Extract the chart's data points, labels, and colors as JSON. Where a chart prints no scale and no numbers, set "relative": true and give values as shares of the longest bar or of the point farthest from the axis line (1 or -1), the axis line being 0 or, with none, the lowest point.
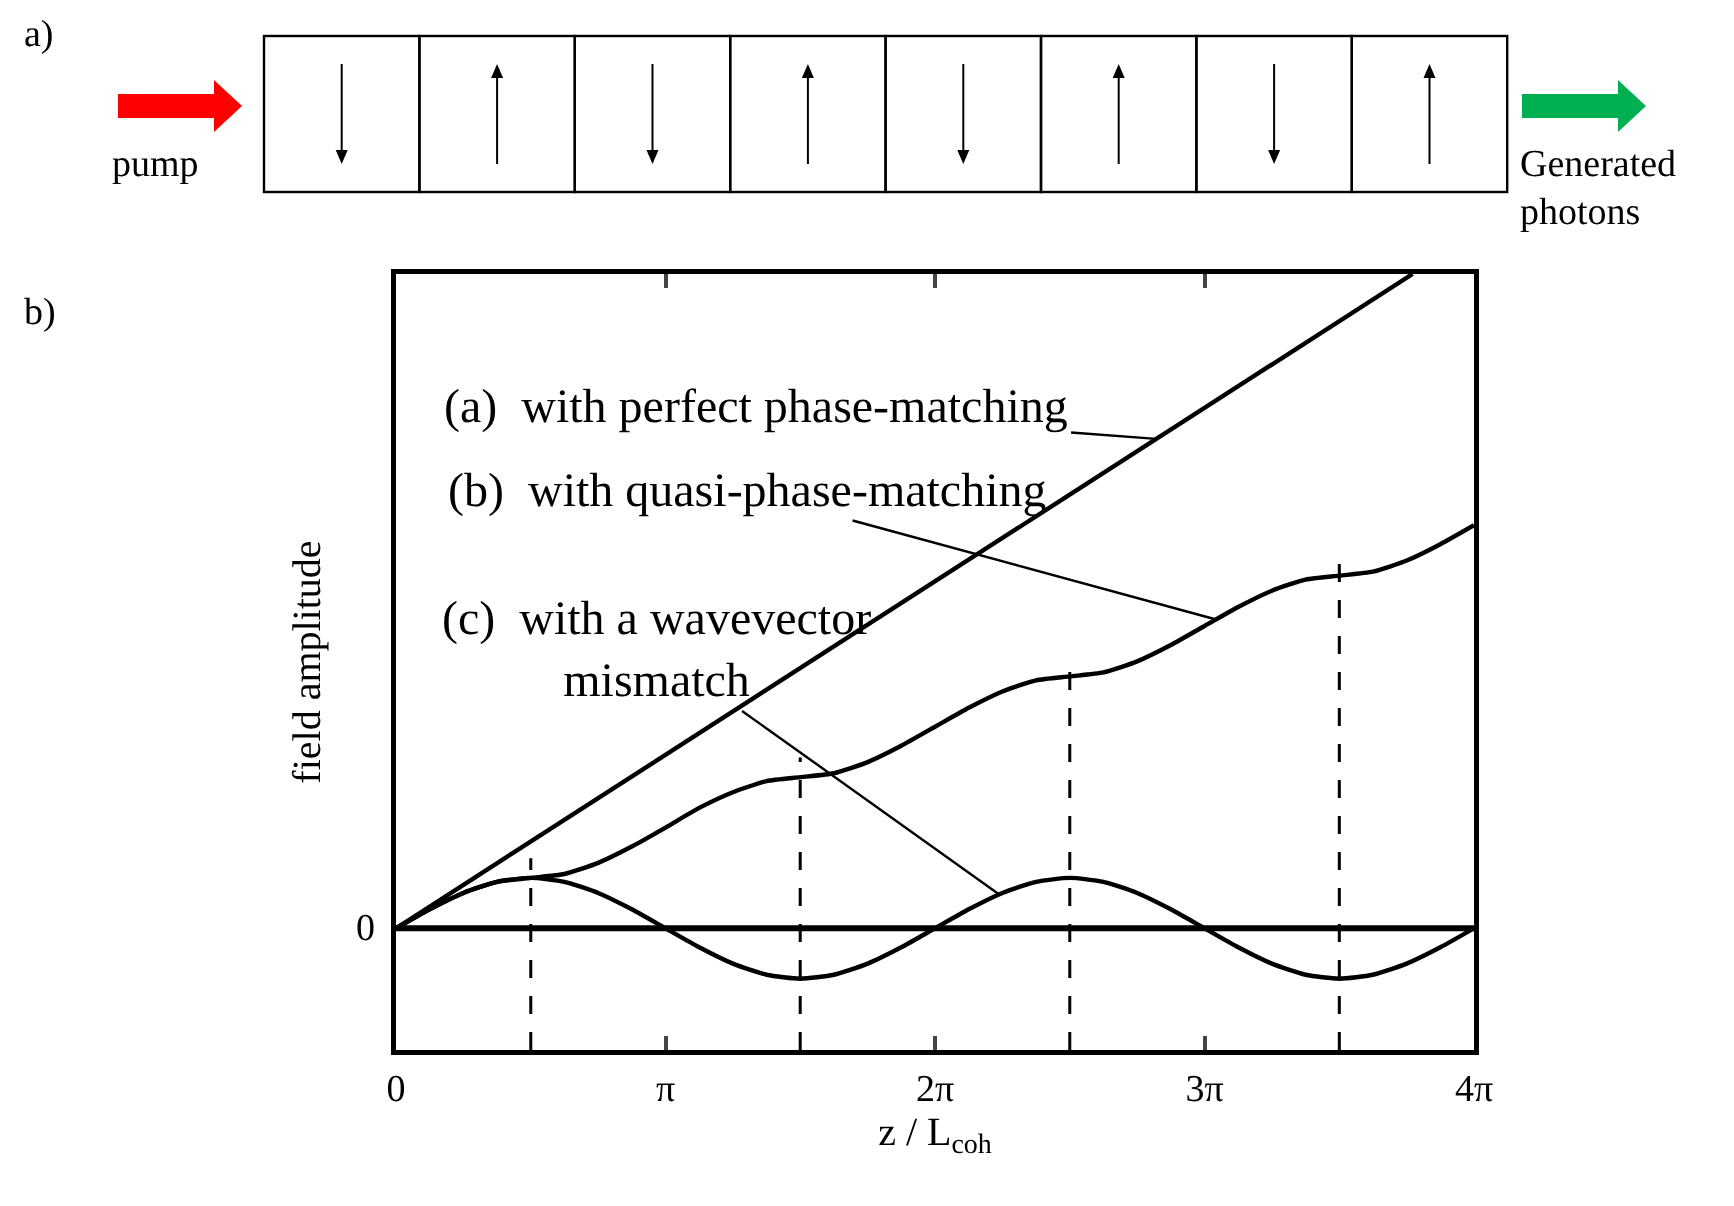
{
  "chart_data": {
    "type": "line",
    "relative": true,
    "xlabel": "z / L$_{coh}$",
    "ylabel": "field amplitude",
    "xlim": [
      0,
      12.566
    ],
    "xticks": [
      0,
      {
        "value": 3.1416,
        "label": "π"
      },
      {
        "value": 6.2832,
        "label": "2π"
      },
      {
        "value": 9.4248,
        "label": "3π"
      },
      {
        "value": 12.566,
        "label": "4π"
      }
    ],
    "marker": "none",
    "line_style": "solid",
    "series": [
      {
        "color": "#000000",
        "x": [
          0,
          11.85
        ],
        "values": [
          0,
          1
        ]
      },
      {
        "color": "#000000",
        "x": [
          0,
          0.393,
          0.785,
          1.178,
          1.571,
          1.963,
          2.356,
          2.749,
          3.142,
          3.534,
          3.927,
          4.32,
          4.712,
          5.105,
          5.498,
          5.89,
          6.283,
          6.676,
          7.069,
          7.461,
          7.854,
          8.247,
          8.639,
          9.032,
          9.425,
          9.817,
          10.21,
          10.603,
          10.996,
          11.388,
          11.781,
          12.174,
          12.566
        ],
        "values": [
          0,
          0.029,
          0.054,
          0.071,
          0.077,
          0.083,
          0.1,
          0.125,
          0.154,
          0.184,
          0.208,
          0.225,
          0.231,
          0.237,
          0.254,
          0.279,
          0.308,
          0.337,
          0.362,
          0.379,
          0.385,
          0.391,
          0.408,
          0.433,
          0.462,
          0.491,
          0.516,
          0.533,
          0.539,
          0.545,
          0.562,
          0.587,
          0.616
        ]
      },
      {
        "color": "#000000",
        "x": [
          0,
          0.393,
          0.785,
          1.178,
          1.571,
          1.963,
          2.356,
          2.749,
          3.142,
          3.534,
          3.927,
          4.32,
          4.712,
          5.105,
          5.498,
          5.89,
          6.283,
          6.676,
          7.069,
          7.461,
          7.854,
          8.247,
          8.639,
          9.032,
          9.425,
          9.817,
          10.21,
          10.603,
          10.996,
          11.388,
          11.781,
          12.174,
          12.566
        ],
        "values": [
          0,
          0.029,
          0.054,
          0.071,
          0.077,
          0.071,
          0.054,
          0.029,
          0,
          -0.029,
          -0.054,
          -0.071,
          -0.077,
          -0.071,
          -0.054,
          -0.029,
          0,
          0.029,
          0.054,
          0.071,
          0.077,
          0.071,
          0.054,
          0.029,
          0,
          -0.029,
          -0.054,
          -0.071,
          -0.077,
          -0.071,
          -0.054,
          -0.029,
          0
        ]
      }
    ],
    "ref_lines": [
      {
        "axis": "y",
        "value": 0,
        "label": "0",
        "color": "#000000",
        "line_style": "solid"
      },
      {
        "axis": "x",
        "value": 1.571,
        "color": "#000000",
        "line_style": "dashed"
      },
      {
        "axis": "x",
        "value": 4.712,
        "color": "#000000",
        "line_style": "dashed"
      },
      {
        "axis": "x",
        "value": 7.854,
        "color": "#000000",
        "line_style": "dashed"
      },
      {
        "axis": "x",
        "value": 10.996,
        "color": "#000000",
        "line_style": "dashed"
      }
    ],
    "annotations": [
      "a)",
      "pump",
      "Generated photons",
      "b)",
      {
        "text": "(a)  with perfect phase-matching",
        "x": 8.86,
        "y": 0.748
      },
      {
        "text": "(b)  with quasi-phase-matching",
        "x": 9.56,
        "y": 0.472
      },
      {
        "text": "(c)  with a wavevector\nmismatch",
        "x": 7.04,
        "y": 0.051
      }
    ]
  }
}
